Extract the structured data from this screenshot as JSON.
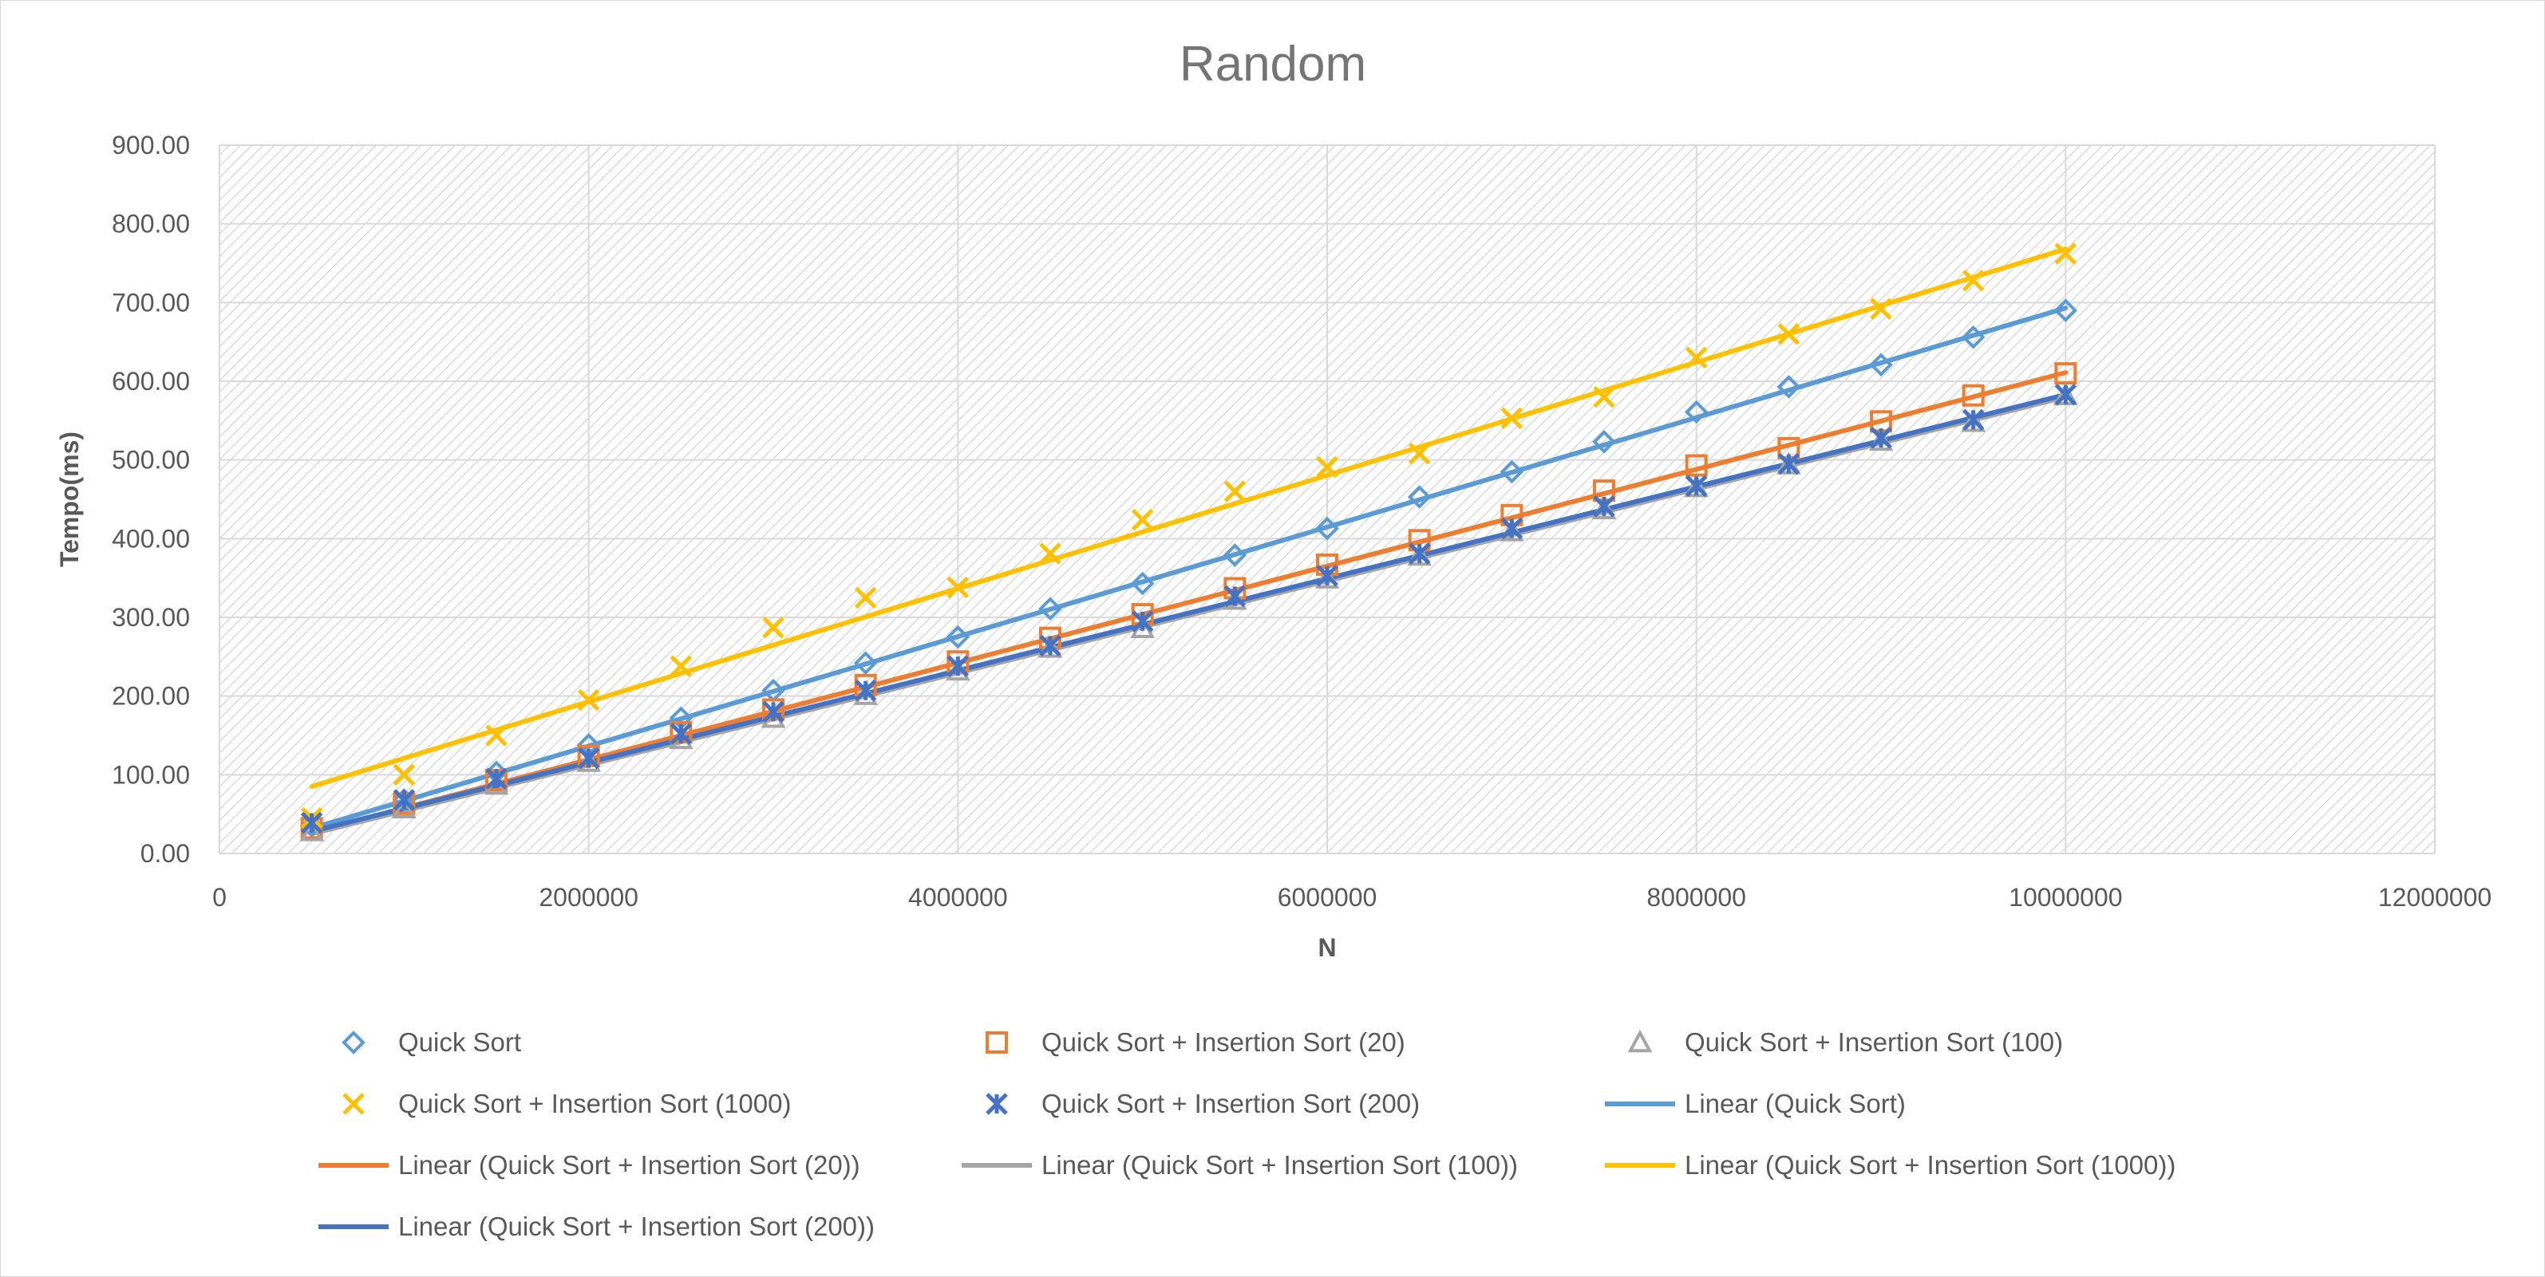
{
  "chart_data": {
    "type": "scatter",
    "title": "Random",
    "xlabel": "N",
    "ylabel": "Tempo(ms)",
    "xlim": [
      0,
      12000000
    ],
    "ylim": [
      0,
      900
    ],
    "x_ticks": [
      0,
      2000000,
      4000000,
      6000000,
      8000000,
      10000000,
      12000000
    ],
    "x_tick_labels": [
      "0",
      "2000000",
      "4000000",
      "6000000",
      "8000000",
      "10000000",
      "12000000"
    ],
    "y_ticks": [
      0,
      100,
      200,
      300,
      400,
      500,
      600,
      700,
      800,
      900
    ],
    "y_tick_labels": [
      "0.00",
      "100.00",
      "200.00",
      "300.00",
      "400.00",
      "500.00",
      "600.00",
      "700.00",
      "800.00",
      "900.00"
    ],
    "grid": true,
    "legend_position": "bottom",
    "x": [
      500000,
      1000000,
      1500000,
      2000000,
      2500000,
      3000000,
      3500000,
      4000000,
      4500000,
      5000000,
      5500000,
      6000000,
      6500000,
      7000000,
      7500000,
      8000000,
      8500000,
      9000000,
      9500000,
      10000000
    ],
    "series": [
      {
        "name": "Quick Sort",
        "marker": "diamond",
        "color": "#5B9BD5",
        "values": [
          35,
          68,
          103,
          138,
          172,
          207,
          242,
          275,
          311,
          343,
          379,
          413,
          453,
          485,
          523,
          561,
          593,
          621,
          656,
          690
        ]
      },
      {
        "name": "Quick Sort + Insertion Sort (20)",
        "marker": "square",
        "color": "#ED7D31",
        "values": [
          32,
          63,
          93,
          124,
          154,
          183,
          214,
          244,
          274,
          304,
          337,
          367,
          398,
          430,
          461,
          493,
          515,
          549,
          582,
          610
        ]
      },
      {
        "name": "Quick Sort + Insertion Sort (100)",
        "marker": "triangle",
        "color": "#A5A5A5",
        "values": [
          28,
          57,
          87,
          116,
          145,
          172,
          201,
          232,
          261,
          286,
          322,
          349,
          378,
          409,
          437,
          465,
          494,
          524,
          548,
          582
        ]
      },
      {
        "name": "Quick Sort + Insertion Sort (1000)",
        "marker": "x",
        "color": "#FFC000",
        "values": [
          45,
          100,
          150,
          195,
          238,
          287,
          325,
          338,
          381,
          424,
          460,
          491,
          508,
          553,
          580,
          630,
          660,
          692,
          728,
          762
        ]
      },
      {
        "name": "Quick Sort + Insertion Sort (200)",
        "marker": "star",
        "color": "#4472C4",
        "values": [
          39,
          68,
          95,
          121,
          152,
          180,
          207,
          238,
          264,
          295,
          327,
          353,
          381,
          413,
          441,
          467,
          495,
          528,
          551,
          583
        ]
      }
    ],
    "trendlines": [
      {
        "name": "Linear (Quick Sort)",
        "color": "#5B9BD5",
        "y_start": 32,
        "y_end": 693
      },
      {
        "name": "Linear (Quick Sort + Insertion Sort (20))",
        "color": "#ED7D31",
        "y_start": 27,
        "y_end": 611
      },
      {
        "name": "Linear (Quick Sort + Insertion Sort (100))",
        "color": "#A5A5A5",
        "y_start": 25,
        "y_end": 580
      },
      {
        "name": "Linear (Quick Sort + Insertion Sort (1000))",
        "color": "#FFC000",
        "y_start": 85,
        "y_end": 768
      },
      {
        "name": "Linear (Quick Sort + Insertion Sort (200))",
        "color": "#4472C4",
        "y_start": 28,
        "y_end": 583
      }
    ],
    "legend_items": [
      {
        "label": "Quick Sort",
        "kind": "marker",
        "marker": "diamond",
        "color": "#5B9BD5"
      },
      {
        "label": "Quick Sort + Insertion Sort (20)",
        "kind": "marker",
        "marker": "square",
        "color": "#ED7D31"
      },
      {
        "label": "Quick Sort + Insertion Sort (100)",
        "kind": "marker",
        "marker": "triangle",
        "color": "#A5A5A5"
      },
      {
        "label": "Quick Sort + Insertion Sort (1000)",
        "kind": "marker",
        "marker": "x",
        "color": "#FFC000"
      },
      {
        "label": "Quick Sort + Insertion Sort (200)",
        "kind": "marker",
        "marker": "star",
        "color": "#4472C4"
      },
      {
        "label": "Linear (Quick Sort)",
        "kind": "line",
        "color": "#5B9BD5"
      },
      {
        "label": "Linear (Quick Sort + Insertion Sort (20))",
        "kind": "line",
        "color": "#ED7D31"
      },
      {
        "label": "Linear (Quick Sort + Insertion Sort (100))",
        "kind": "line",
        "color": "#A5A5A5"
      },
      {
        "label": "Linear (Quick Sort + Insertion Sort (1000))",
        "kind": "line",
        "color": "#FFC000"
      },
      {
        "label": "Linear (Quick Sort + Insertion Sort (200))",
        "kind": "line",
        "color": "#4472C4"
      }
    ]
  }
}
